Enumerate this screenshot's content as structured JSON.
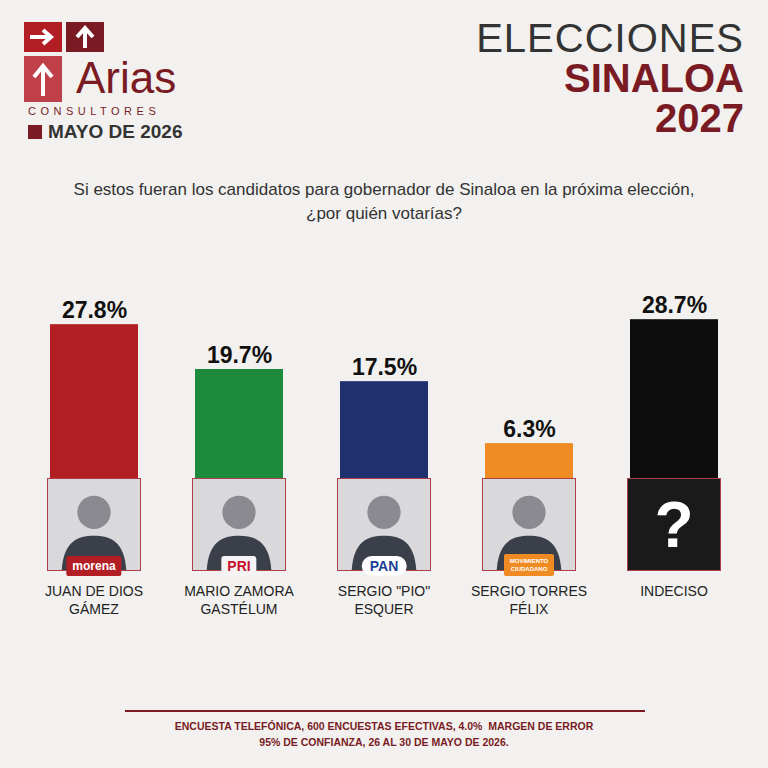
{
  "header": {
    "logo": "Arias",
    "logo_sub": "CONSULTORES",
    "date": "MAYO DE 2026",
    "title": [
      "ELECCIONES",
      "SINALOA",
      "2027"
    ]
  },
  "chart_data": {
    "type": "bar",
    "subtitle": "Si estos fueran los candidatos para gobernador de Sinaloa en la próxima elección, ¿por quién votarías?",
    "categories": [
      "JUAN DE DIOS GÁMEZ",
      "MARIO ZAMORA GASTÉLUM",
      "SERGIO \"PIO\" ESQUER",
      "SERGIO TORRES FÉLIX",
      "INDECISO"
    ],
    "values": [
      27.8,
      19.7,
      17.5,
      6.3,
      28.7
    ],
    "value_labels": [
      "27.8%",
      "19.7%",
      "17.5%",
      "6.3%",
      "28.7%"
    ],
    "colors": [
      "#b21e24",
      "#1e8a3c",
      "#203170",
      "#f08a22",
      "#0d0d0d"
    ],
    "badges": [
      "morena",
      "PRI",
      "PAN",
      "MOVIMIENTO CIUDADANO",
      "?"
    ],
    "ylim": [
      0,
      30
    ],
    "data_labels": true,
    "tick_labels": "x",
    "grid": false
  },
  "footer": [
    "ENCUESTA TELEFÓNICA, 600 ENCUESTAS EFECTIVAS, 4.0%  MARGEN DE ERROR",
    "95% DE CONFIANZA, 26 AL 30 DE MAYO DE 2026."
  ]
}
